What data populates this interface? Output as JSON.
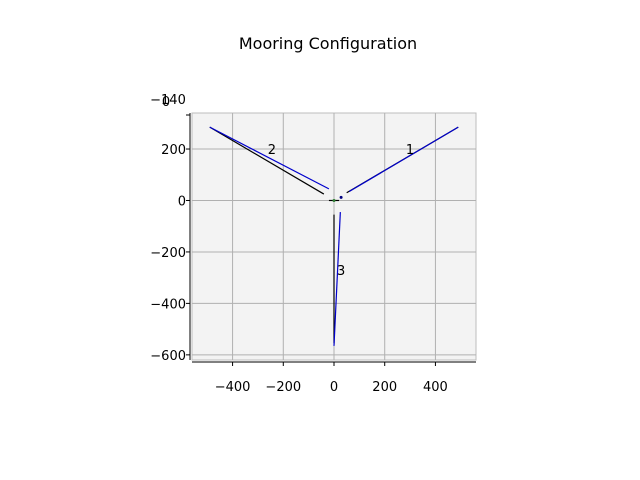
{
  "chart_data": {
    "type": "line",
    "title": "Mooring Configuration",
    "xlabel": "",
    "ylabel": "",
    "xlim": [
      -560,
      560
    ],
    "ylim": [
      -620,
      340
    ],
    "grid": true,
    "panel_color": "#f3f3f3",
    "x_ticks": [
      -400,
      -200,
      0,
      200,
      400
    ],
    "x_tick_labels": [
      "−400",
      "−200",
      "0",
      "200",
      "400"
    ],
    "y_ticks": [
      200,
      0,
      -200,
      -400,
      -600
    ],
    "y_tick_labels": [
      "200",
      "0",
      "−200",
      "−400",
      "−600"
    ],
    "extra_labels": [
      "0",
      "−140"
    ],
    "line_labels": [
      {
        "text": "1",
        "x": 300,
        "y": 180
      },
      {
        "text": "2",
        "x": -245,
        "y": 180
      },
      {
        "text": "3",
        "x": 28,
        "y": -290
      }
    ],
    "series": [
      {
        "color": "#000000",
        "x": [
          -490,
          -40
        ],
        "y": [
          285,
          25
        ]
      },
      {
        "color": "#0000cc",
        "x": [
          -490,
          -20
        ],
        "y": [
          285,
          45
        ]
      },
      {
        "color": "#000000",
        "x": [
          490,
          50
        ],
        "y": [
          285,
          30
        ]
      },
      {
        "color": "#0000cc",
        "x": [
          490,
          60
        ],
        "y": [
          285,
          35
        ]
      },
      {
        "color": "#000000",
        "x": [
          0,
          0
        ],
        "y": [
          -555,
          -55
        ]
      },
      {
        "color": "#0000cc",
        "x": [
          0,
          25
        ],
        "y": [
          -565,
          -45
        ]
      },
      {
        "color": "#000000",
        "x": [
          -20,
          20
        ],
        "y": [
          0,
          0
        ]
      }
    ]
  }
}
